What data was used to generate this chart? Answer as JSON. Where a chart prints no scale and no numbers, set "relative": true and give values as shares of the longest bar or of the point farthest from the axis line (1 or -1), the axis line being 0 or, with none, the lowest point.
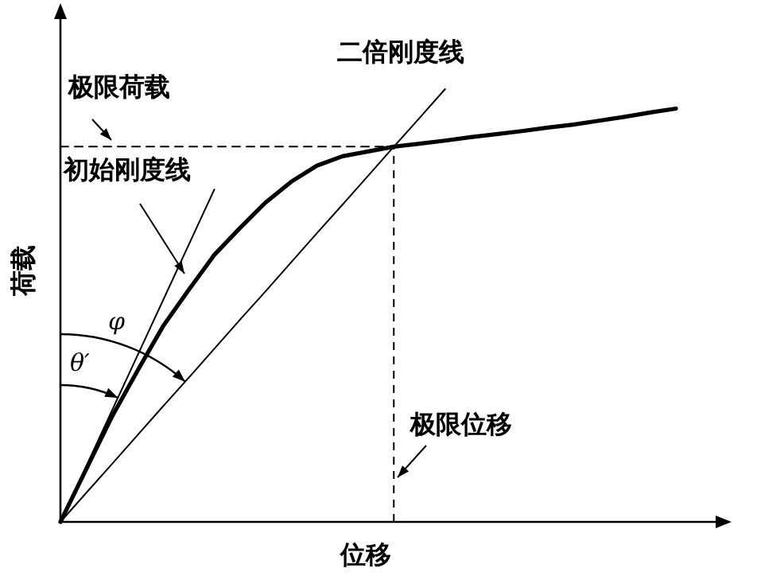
{
  "chart_data": {
    "type": "line",
    "relative": true,
    "xlabel": "位移",
    "ylabel": "荷载",
    "annotations": [
      "极限荷载",
      "二倍刚度线",
      "初始刚度线",
      "φ",
      "θ′",
      "极限位移"
    ],
    "categories": [
      null,
      null,
      null,
      null,
      null,
      null,
      null,
      null,
      null,
      null,
      null,
      null,
      null,
      null,
      null,
      null,
      null,
      null,
      null,
      null,
      null,
      null,
      null,
      null,
      null
    ],
    "series": [
      {
        "color": "#000000",
        "line_style": "solid",
        "values": [
          0,
          0.121,
          0.242,
          0.349,
          0.452,
          0.536,
          0.617,
          0.679,
          0.738,
          0.786,
          0.823,
          0.845,
          0.856,
          0.867,
          0.874,
          0.881,
          0.889,
          0.896,
          0.903,
          0.911,
          0.918,
          0.927,
          0.936,
          0.946,
          0.955
        ]
      },
      {
        "color": "#000000",
        "line_style": "solid",
        "values": [
          0,
          0.128,
          0.256,
          0.384,
          0.512,
          0.64,
          0.768,
          null,
          null,
          null,
          null,
          null,
          null,
          null,
          null,
          null,
          null,
          null,
          null,
          null,
          null,
          null,
          null,
          null,
          null
        ]
      },
      {
        "color": "#000000",
        "line_style": "solid",
        "values": [
          0,
          0.0667,
          0.133,
          0.2,
          0.267,
          0.333,
          0.4,
          0.467,
          0.533,
          0.6,
          0.667,
          0.733,
          0.8,
          0.867,
          0.933,
          1,
          null,
          null,
          null,
          null,
          null,
          null,
          null,
          null,
          null
        ]
      },
      {
        "color": "#000000",
        "line_style": "dashed",
        "values": [
          0.867,
          0.867,
          0.867,
          0.867,
          0.867,
          0.867,
          0.867,
          0.867,
          0.867,
          0.867,
          0.867,
          0.867,
          0.867,
          0.867,
          null,
          null,
          null,
          null,
          null,
          null,
          null,
          null,
          null,
          null,
          null
        ]
      }
    ]
  }
}
